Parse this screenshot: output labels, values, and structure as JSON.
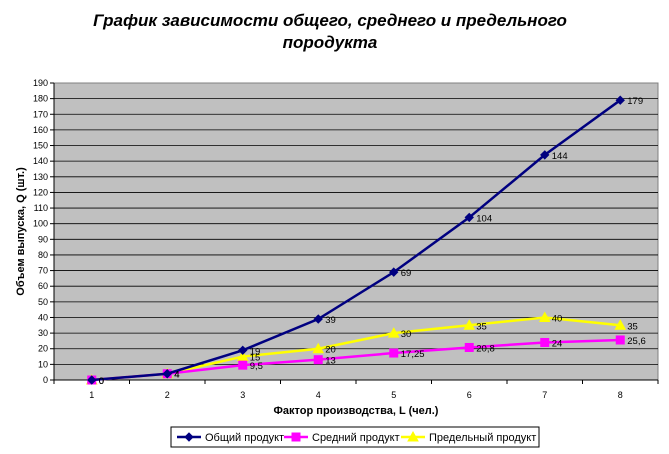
{
  "chart_data": {
    "type": "line",
    "title": "График зависимости общего, среднего и предельного породукта",
    "xlabel": "Фактор производства, L (чел.)",
    "ylabel": "Объем выпуска, Q (шт.)",
    "categories": [
      "1",
      "2",
      "3",
      "4",
      "5",
      "6",
      "7",
      "8"
    ],
    "ylim": [
      0,
      190
    ],
    "ytick_step": 10,
    "grid": true,
    "legend_position": "bottom",
    "plot_background": "#c0c0c0",
    "series": [
      {
        "name": "Общий продукт",
        "color": "#000080",
        "marker": "diamond",
        "values": [
          0,
          4,
          19,
          39,
          69,
          104,
          144,
          179
        ],
        "labels": [
          "0",
          "4",
          "19",
          "39",
          "69",
          "104",
          "144",
          "179"
        ]
      },
      {
        "name": "Средний продукт",
        "color": "#ff00ff",
        "marker": "square",
        "values": [
          0,
          4,
          9.5,
          13,
          17.25,
          20.8,
          24,
          25.6
        ],
        "labels": [
          "0",
          "4",
          "9,5",
          "13",
          "17,25",
          "20,8",
          "24",
          "25,6"
        ]
      },
      {
        "name": "Предельный продукт",
        "color": "#ffff00",
        "marker": "triangle",
        "values": [
          0,
          4,
          15,
          20,
          30,
          35,
          40,
          35
        ],
        "labels": [
          "0",
          "4",
          "15",
          "20",
          "30",
          "35",
          "40",
          "35"
        ]
      }
    ]
  }
}
